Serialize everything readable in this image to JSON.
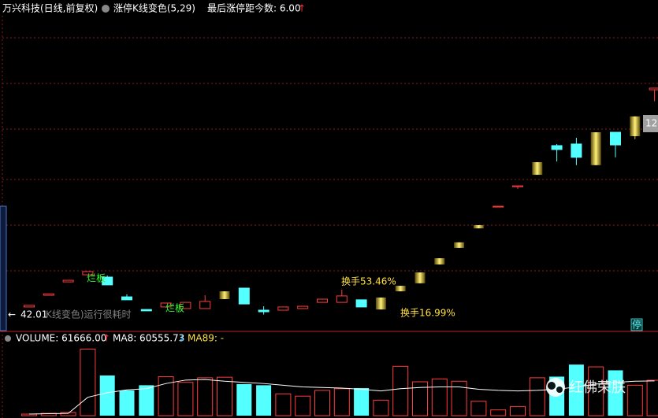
{
  "header": {
    "title": "万兴科技(日线,前复权)",
    "indicator": "涨停K线变色(5,29)",
    "last_limit": "最后涨停距今数: 6.00",
    "last_limit_arrow": "↑"
  },
  "annotations": {
    "bad_board_1": "烂板",
    "bad_board_2": "烂板",
    "turnover_1": "换手53.46%",
    "turnover_2": "换手16.99%",
    "slow_note": "K线变色)运行很耗时",
    "last_price_tag": "12",
    "halt_tag": "停",
    "watermark": "红佛荣朕"
  },
  "chart_data": {
    "type": "candlestick",
    "ylim": [
      35,
      172
    ],
    "open": [
      45.3,
      50.4,
      56.2,
      59.3,
      58.3,
      49.7,
      44.2,
      45.3,
      44.6,
      44.6,
      48.7,
      53.5,
      43.9,
      43.9,
      44.6,
      47.3,
      47.3,
      48.4,
      44.2,
      52.1,
      55.6,
      63.8,
      71.0,
      79.5,
      88.8,
      97.6,
      102.8,
      115.5,
      116.2,
      107.0,
      121.3,
      119.6,
      139.8
    ],
    "high": [
      46.0,
      51.1,
      56.9,
      60.7,
      59.0,
      50.8,
      44.2,
      47.0,
      47.3,
      50.4,
      52.1,
      53.5,
      45.6,
      45.3,
      45.6,
      48.7,
      52.8,
      48.4,
      49.4,
      54.5,
      60.3,
      66.5,
      73.4,
      80.9,
      89.1,
      98.0,
      108.3,
      116.2,
      118.9,
      121.3,
      121.3,
      128.2,
      140.5
    ],
    "low": [
      45.3,
      50.4,
      56.2,
      59.3,
      54.9,
      48.4,
      43.6,
      45.3,
      44.6,
      44.6,
      48.7,
      46.6,
      42.01,
      43.9,
      44.6,
      47.3,
      47.3,
      45.3,
      44.2,
      52.1,
      55.6,
      63.8,
      71.0,
      79.5,
      88.8,
      96.7,
      102.8,
      108.6,
      107.0,
      107.0,
      110.4,
      118.3,
      134.8
    ],
    "close": [
      46.0,
      51.0,
      56.9,
      60.7,
      54.9,
      48.4,
      43.6,
      47.0,
      47.3,
      47.7,
      52.1,
      46.6,
      43.2,
      45.3,
      45.6,
      48.7,
      50.1,
      45.3,
      49.4,
      54.5,
      60.3,
      66.5,
      73.4,
      80.9,
      89.1,
      98.0,
      108.3,
      113.8,
      110.4,
      121.3,
      115.8,
      128.2,
      140.5
    ],
    "limit_up": [
      false,
      false,
      false,
      false,
      false,
      false,
      false,
      false,
      false,
      false,
      true,
      false,
      false,
      false,
      false,
      false,
      false,
      false,
      true,
      true,
      true,
      true,
      true,
      true,
      false,
      false,
      true,
      false,
      false,
      true,
      false,
      true,
      false
    ],
    "volume": {
      "label": "VOLUME: 61666.00",
      "up_arrow": "↑",
      "ma8_label": "MA8: 60555.73",
      "down_arrow": "↓",
      "ma89_label": "MA89: -",
      "ylim": [
        0,
        118000
      ],
      "values": [
        2700,
        4000,
        5500,
        116000,
        70000,
        44000,
        53000,
        68000,
        58000,
        66000,
        67000,
        55000,
        53000,
        38000,
        34000,
        44000,
        47000,
        48000,
        27000,
        86000,
        59000,
        64000,
        60000,
        25000,
        10000,
        16000,
        66000,
        68000,
        89000,
        85000,
        79000,
        53000,
        61666
      ],
      "ma8": [
        2700,
        3400,
        4000,
        32000,
        40000,
        45000,
        47000,
        56000,
        62000,
        63000,
        60000,
        58000,
        56000,
        53000,
        50000,
        49000,
        48000,
        46000,
        43000,
        47000,
        49000,
        50000,
        50000,
        46000,
        44000,
        43000,
        44000,
        46000,
        50000,
        55000,
        58000,
        60000,
        60555.73
      ]
    }
  }
}
